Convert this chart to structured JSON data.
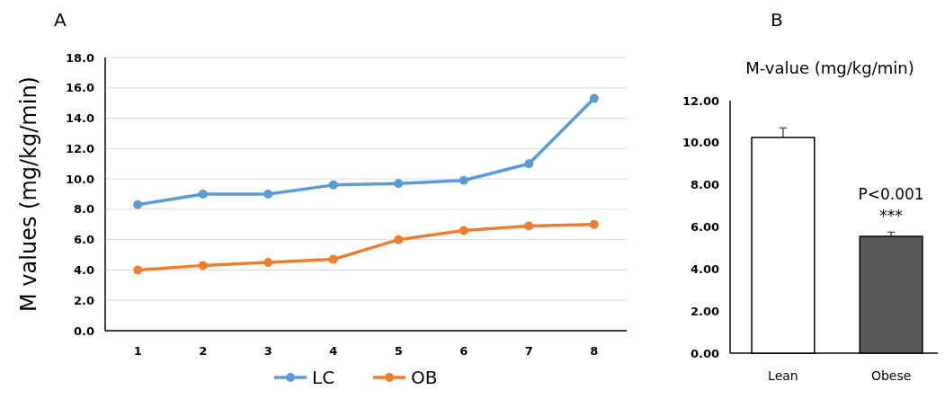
{
  "chart_data": [
    {
      "type": "line",
      "title": "A",
      "ylabel": "M values (mg/kg/min)",
      "categories": [
        "1",
        "2",
        "3",
        "4",
        "5",
        "6",
        "7",
        "8"
      ],
      "series": [
        {
          "name": "LC",
          "color": "#5b9bd5",
          "values": [
            8.3,
            9.0,
            9.0,
            9.6,
            9.7,
            9.9,
            11.0,
            15.3
          ]
        },
        {
          "name": "OB",
          "color": "#ed7d31",
          "values": [
            4.0,
            4.3,
            4.5,
            4.7,
            6.0,
            6.6,
            6.9,
            7.0
          ]
        }
      ],
      "ylim": [
        0,
        18
      ],
      "yticks": [
        {
          "value": 0,
          "label": "0.0"
        },
        {
          "value": 2,
          "label": "2.0"
        },
        {
          "value": 4,
          "label": "4.0"
        },
        {
          "value": 6,
          "label": "6.0"
        },
        {
          "value": 8,
          "label": "8.0"
        },
        {
          "value": 10,
          "label": "10.0"
        },
        {
          "value": 12,
          "label": "12.0"
        },
        {
          "value": 14,
          "label": "14.0"
        },
        {
          "value": 16,
          "label": "16.0"
        },
        {
          "value": 18,
          "label": "18.0"
        }
      ],
      "grid": "y",
      "legend": "bottom",
      "marker": "circle",
      "line_style": "solid"
    },
    {
      "type": "bar",
      "title": "B",
      "subtitle": "M-value (mg/kg/min)",
      "categories": [
        "Lean",
        "Obese"
      ],
      "values": [
        10.25,
        5.55
      ],
      "colors": [
        "#ffffff",
        "#595959"
      ],
      "errors": [
        0.45,
        0.2
      ],
      "ylim": [
        0,
        12
      ],
      "yticks": [
        {
          "value": 0,
          "label": "0.00"
        },
        {
          "value": 2,
          "label": "2.00"
        },
        {
          "value": 4,
          "label": "4.00"
        },
        {
          "value": 6,
          "label": "6.00"
        },
        {
          "value": 8,
          "label": "8.00"
        },
        {
          "value": 10,
          "label": "10.00"
        },
        {
          "value": 12,
          "label": "12.00"
        }
      ],
      "annotations": [
        "P<0.001",
        "***"
      ]
    }
  ]
}
